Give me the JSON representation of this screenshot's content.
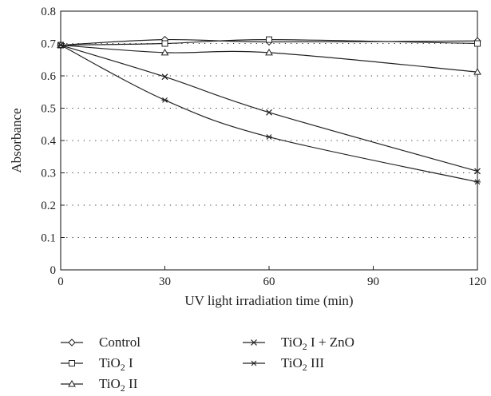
{
  "chart_data": {
    "type": "line",
    "xlabel": "UV light irradiation time (min)",
    "ylabel": "Absorbance",
    "xlim": [
      0,
      120
    ],
    "ylim": [
      0,
      0.8
    ],
    "x_ticks": [
      0,
      30,
      60,
      90,
      120
    ],
    "y_ticks": [
      0,
      0.1,
      0.2,
      0.3,
      0.4,
      0.5,
      0.6,
      0.7,
      0.8
    ],
    "y_tick_labels": [
      "0",
      "0.1",
      "0.2",
      "0.3",
      "0.4",
      "0.5",
      "0.6",
      "0.7",
      "0.8"
    ],
    "grid": "horizontal-dotted",
    "legend_position": "bottom",
    "x": [
      0,
      30,
      60,
      120
    ],
    "series": [
      {
        "name": "Control",
        "legend_main": "Control",
        "legend_sub": "",
        "legend_tail": "",
        "marker": "diamond",
        "values": [
          0.695,
          0.712,
          0.705,
          0.708
        ]
      },
      {
        "name": "TiO2 I",
        "legend_main": "TiO",
        "legend_sub": "2",
        "legend_tail": " I",
        "marker": "square",
        "values": [
          0.695,
          0.7,
          0.712,
          0.7
        ]
      },
      {
        "name": "TiO2 II",
        "legend_main": "TiO",
        "legend_sub": "2",
        "legend_tail": " II",
        "marker": "triangle",
        "values": [
          0.695,
          0.672,
          0.672,
          0.612
        ]
      },
      {
        "name": "TiO2 I + ZnO",
        "legend_main": "TiO",
        "legend_sub": "2",
        "legend_tail": " I + ZnO",
        "marker": "x",
        "values": [
          0.695,
          0.597,
          0.487,
          0.305
        ]
      },
      {
        "name": "TiO2 III",
        "legend_main": "TiO",
        "legend_sub": "2",
        "legend_tail": " III",
        "marker": "asterisk",
        "values": [
          0.695,
          0.525,
          0.411,
          0.272
        ]
      }
    ]
  }
}
